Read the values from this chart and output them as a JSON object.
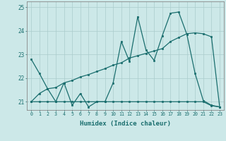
{
  "xlabel": "Humidex (Indice chaleur)",
  "background_color": "#cce8e8",
  "line_color": "#1a6e6e",
  "grid_color": "#aacccc",
  "xlim": [
    -0.5,
    23.5
  ],
  "ylim": [
    20.65,
    25.25
  ],
  "yticks": [
    21,
    22,
    23,
    24,
    25
  ],
  "xtick_labels": [
    "0",
    "1",
    "2",
    "3",
    "4",
    "5",
    "6",
    "7",
    "8",
    "9",
    "10",
    "11",
    "12",
    "13",
    "14",
    "15",
    "16",
    "17",
    "18",
    "19",
    "20",
    "21",
    "22",
    "23"
  ],
  "line1_x": [
    0,
    1,
    2,
    3,
    4,
    5,
    6,
    7,
    8,
    9,
    10,
    11,
    12,
    13,
    14,
    15,
    16,
    17,
    18,
    19,
    20,
    21,
    22,
    23
  ],
  "line1_y": [
    22.8,
    22.2,
    21.55,
    21.0,
    21.8,
    20.85,
    21.35,
    20.78,
    21.0,
    21.0,
    21.8,
    23.55,
    22.7,
    24.6,
    23.2,
    22.75,
    23.8,
    24.75,
    24.8,
    23.85,
    22.2,
    21.05,
    20.85,
    20.78
  ],
  "line2_x": [
    0,
    1,
    2,
    3,
    4,
    5,
    6,
    7,
    8,
    9,
    10,
    11,
    12,
    13,
    14,
    15,
    16,
    17,
    18,
    19,
    20,
    21,
    22,
    23
  ],
  "line2_y": [
    21.0,
    21.0,
    21.0,
    21.0,
    21.0,
    21.0,
    21.0,
    21.0,
    21.0,
    21.0,
    21.0,
    21.0,
    21.0,
    21.0,
    21.0,
    21.0,
    21.0,
    21.0,
    21.0,
    21.0,
    21.0,
    21.0,
    20.83,
    20.78
  ],
  "line3_x": [
    0,
    1,
    2,
    3,
    4,
    5,
    6,
    7,
    8,
    9,
    10,
    11,
    12,
    13,
    14,
    15,
    16,
    17,
    18,
    19,
    20,
    21,
    22,
    23
  ],
  "line3_y": [
    21.0,
    21.35,
    21.55,
    21.6,
    21.8,
    21.9,
    22.05,
    22.15,
    22.28,
    22.4,
    22.55,
    22.65,
    22.85,
    22.95,
    23.05,
    23.15,
    23.25,
    23.55,
    23.72,
    23.88,
    23.92,
    23.88,
    23.75,
    20.78
  ]
}
